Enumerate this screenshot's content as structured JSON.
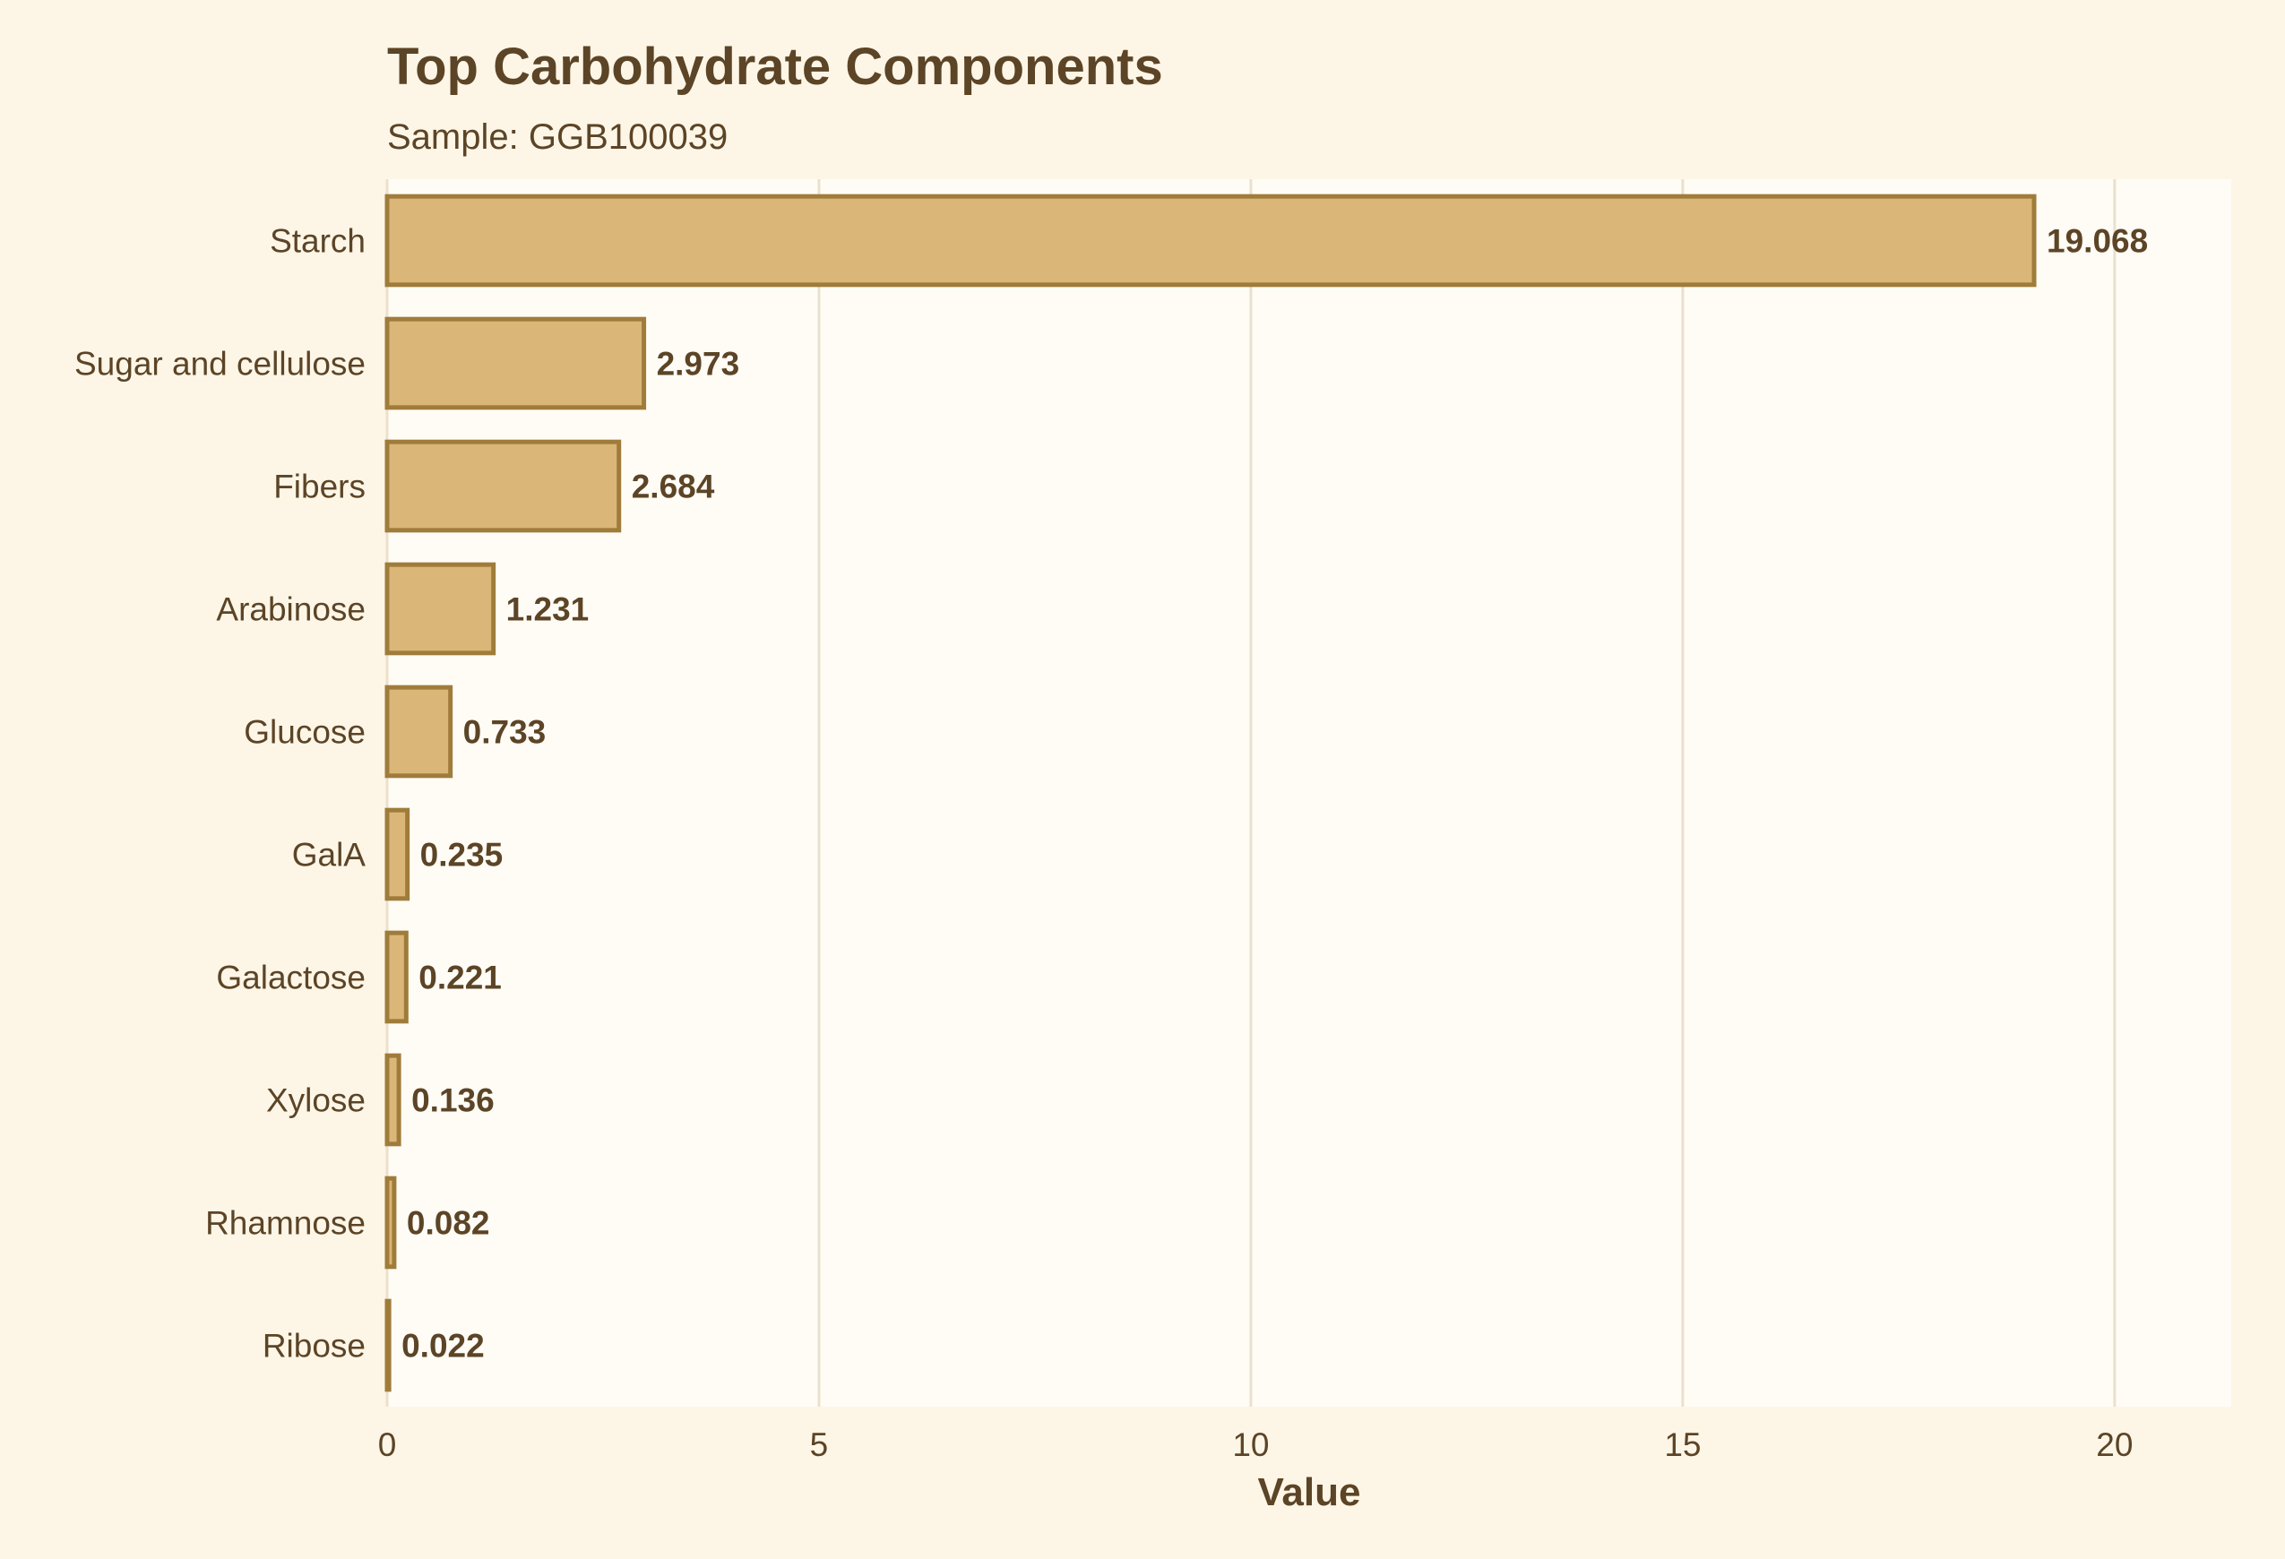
{
  "chart_data": {
    "type": "bar",
    "orientation": "horizontal",
    "title": "Top Carbohydrate Components",
    "subtitle": "Sample: GGB100039",
    "xlabel": "Value",
    "ylabel": "",
    "categories": [
      "Starch",
      "Sugar and cellulose",
      "Fibers",
      "Arabinose",
      "Glucose",
      "GalA",
      "Galactose",
      "Xylose",
      "Rhamnose",
      "Ribose"
    ],
    "values": [
      19.068,
      2.973,
      2.684,
      1.231,
      0.733,
      0.235,
      0.221,
      0.136,
      0.082,
      0.022
    ],
    "data_labels": [
      "19.068",
      "2.973",
      "2.684",
      "1.231",
      "0.733",
      "0.235",
      "0.221",
      "0.136",
      "0.082",
      "0.022"
    ],
    "xlim": [
      0,
      21.35
    ],
    "xticks": [
      0,
      5,
      10,
      15,
      20
    ],
    "grid": "vertical-major",
    "legend": "none",
    "colors": {
      "page_background": "#fdf6e7",
      "panel_background": "#fffcf6",
      "bar_fill": "#dbb679",
      "bar_stroke": "#a07c3a",
      "grid": "#ebe0cc",
      "text": "#5c4426"
    }
  }
}
